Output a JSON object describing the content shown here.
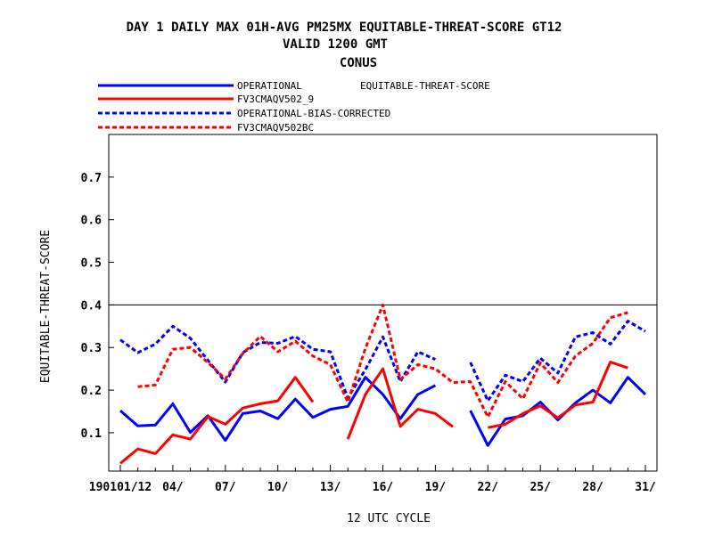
{
  "chart_data": {
    "type": "line",
    "title_lines": [
      "DAY 1 DAILY MAX   01H-AVG PM25MX EQUITABLE-THREAT-SCORE GT12",
      "VALID 1200 GMT",
      "CONUS"
    ],
    "xlabel": "12 UTC CYCLE",
    "ylabel": "EQUITABLE-THREAT-SCORE",
    "legend_note": "EQUITABLE-THREAT-SCORE",
    "legend_position": "top-left",
    "grid": false,
    "x_range": [
      1,
      31
    ],
    "ylim": [
      0.01,
      0.8
    ],
    "reference_line": 0.4,
    "x_ticks": [
      {
        "x": 1,
        "label": "190101/12"
      },
      {
        "x": 4,
        "label": "04/"
      },
      {
        "x": 7,
        "label": "07/"
      },
      {
        "x": 10,
        "label": "10/"
      },
      {
        "x": 13,
        "label": "13/"
      },
      {
        "x": 16,
        "label": "16/"
      },
      {
        "x": 19,
        "label": "19/"
      },
      {
        "x": 22,
        "label": "22/"
      },
      {
        "x": 25,
        "label": "25/"
      },
      {
        "x": 28,
        "label": "28/"
      },
      {
        "x": 31,
        "label": "31/"
      }
    ],
    "y_ticks": [
      {
        "y": 0.1,
        "label": "0.1"
      },
      {
        "y": 0.2,
        "label": "0.2"
      },
      {
        "y": 0.3,
        "label": "0.3"
      },
      {
        "y": 0.4,
        "label": "0.4"
      },
      {
        "y": 0.5,
        "label": "0.5"
      },
      {
        "y": 0.6,
        "label": "0.6"
      },
      {
        "y": 0.7,
        "label": "0.7"
      }
    ],
    "x": [
      1,
      2,
      3,
      4,
      5,
      6,
      7,
      8,
      9,
      10,
      11,
      12,
      13,
      14,
      15,
      16,
      17,
      18,
      19,
      20,
      21,
      22,
      23,
      24,
      25,
      26,
      27,
      28,
      29,
      30,
      31
    ],
    "series": [
      {
        "name": "OPERATIONAL",
        "color": "#0000ff",
        "dash": "solid",
        "values": [
          0.152,
          0.116,
          0.118,
          0.168,
          0.101,
          0.14,
          0.082,
          0.145,
          0.151,
          0.133,
          0.179,
          0.136,
          0.155,
          0.162,
          0.23,
          0.19,
          0.133,
          0.19,
          0.211,
          null,
          0.152,
          0.07,
          0.132,
          0.14,
          0.172,
          0.13,
          0.17,
          0.2,
          0.17,
          0.23,
          0.19
        ]
      },
      {
        "name": "FV3CMAQV502_9",
        "color": "#ff0000",
        "dash": "solid",
        "values": [
          0.028,
          0.062,
          0.051,
          0.095,
          0.085,
          0.138,
          0.12,
          0.158,
          0.168,
          0.175,
          0.23,
          0.172,
          null,
          0.085,
          0.19,
          0.25,
          0.115,
          0.155,
          0.145,
          0.114,
          null,
          0.112,
          0.12,
          0.145,
          0.163,
          0.135,
          0.165,
          0.172,
          0.266,
          0.252,
          null
        ]
      },
      {
        "name": "OPERATIONAL-BIAS-CORRECTED",
        "color": "#0000ff",
        "dash": "dashed",
        "values": [
          0.318,
          0.288,
          0.308,
          0.35,
          0.322,
          0.27,
          0.219,
          0.288,
          0.312,
          0.31,
          0.326,
          0.296,
          0.29,
          0.182,
          0.248,
          0.325,
          0.22,
          0.29,
          0.272,
          null,
          0.265,
          0.175,
          0.235,
          0.22,
          0.275,
          0.24,
          0.325,
          0.335,
          0.308,
          0.362,
          0.338
        ]
      },
      {
        "name": "FV3CMAQV502BC",
        "color": "#ff0000",
        "dash": "dashed",
        "values": [
          null,
          0.208,
          0.212,
          0.296,
          0.3,
          0.265,
          0.226,
          0.286,
          0.326,
          0.29,
          0.315,
          0.28,
          0.26,
          0.172,
          0.298,
          0.4,
          0.225,
          0.26,
          0.25,
          0.218,
          0.22,
          0.137,
          0.22,
          0.18,
          0.264,
          0.218,
          0.28,
          0.31,
          0.37,
          0.382,
          null
        ]
      }
    ]
  }
}
